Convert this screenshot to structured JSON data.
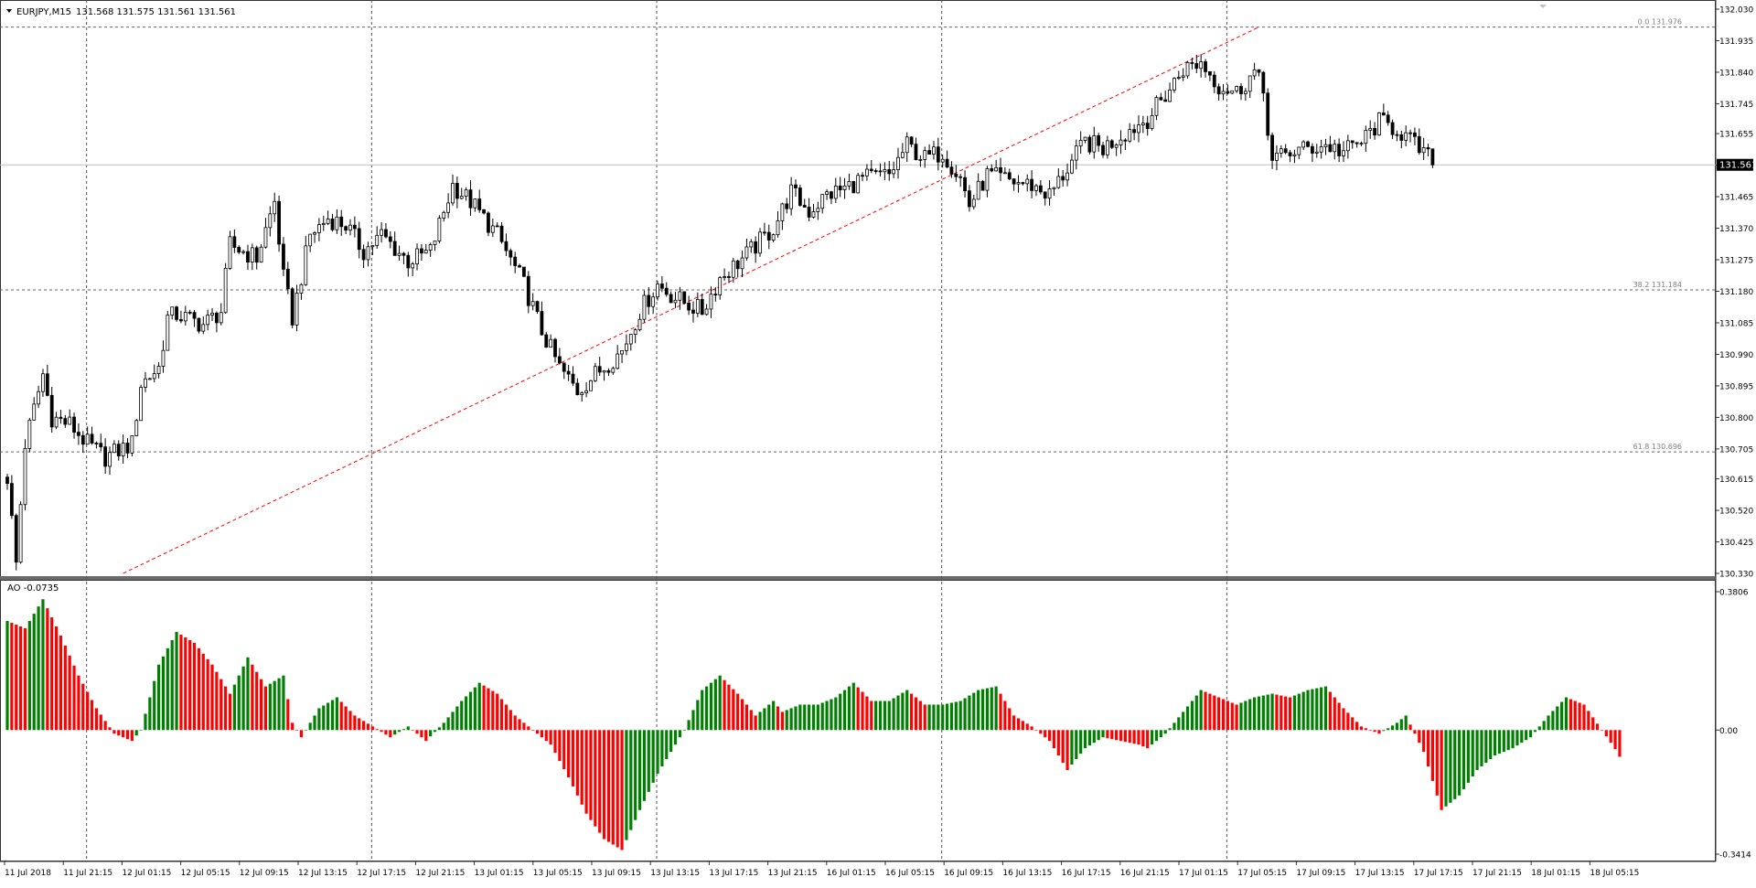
{
  "chart_data": [
    {
      "type": "candlestick",
      "title": "EURJPY,M15",
      "ohlc_header": "131.568 131.575 131.561 131.561",
      "timeframe": "M15",
      "symbol": "EURJPY",
      "ylim": [
        130.33,
        132.03
      ],
      "y_ticks": [
        "132.030",
        "131.935",
        "131.840",
        "131.745",
        "131.655",
        "131.560",
        "131.465",
        "131.370",
        "131.275",
        "131.180",
        "131.085",
        "130.990",
        "130.895",
        "130.800",
        "130.705",
        "130.615",
        "130.520",
        "130.425",
        "130.330"
      ],
      "current_price_label": "131.561",
      "current_price": 131.561,
      "grid": "dotted, vertical at day boundaries",
      "fibonacci_levels": [
        {
          "label": "0.0 131.976",
          "price": 131.976
        },
        {
          "label": "38.2 131.184",
          "price": 131.184
        },
        {
          "label": "61.8 130.696",
          "price": 130.696
        }
      ],
      "trendline": {
        "color": "#ff0000",
        "style": "dashed",
        "from": {
          "bar": 26,
          "price": 130.33
        },
        "to": {
          "bar": 281,
          "price": 131.976
        }
      },
      "price_anchors": [
        [
          0,
          130.62
        ],
        [
          2,
          130.36
        ],
        [
          4,
          130.72
        ],
        [
          8,
          130.93
        ],
        [
          10,
          130.8
        ],
        [
          14,
          130.78
        ],
        [
          18,
          130.72
        ],
        [
          22,
          130.68
        ],
        [
          28,
          130.72
        ],
        [
          30,
          130.9
        ],
        [
          34,
          130.95
        ],
        [
          36,
          131.1
        ],
        [
          38,
          131.11
        ],
        [
          44,
          131.08
        ],
        [
          48,
          131.12
        ],
        [
          50,
          131.32
        ],
        [
          56,
          131.28
        ],
        [
          60,
          131.45
        ],
        [
          62,
          131.22
        ],
        [
          64,
          131.1
        ],
        [
          68,
          131.35
        ],
        [
          72,
          131.4
        ],
        [
          76,
          131.38
        ],
        [
          80,
          131.3
        ],
        [
          84,
          131.35
        ],
        [
          90,
          131.27
        ],
        [
          95,
          131.3
        ],
        [
          100,
          131.5
        ],
        [
          104,
          131.45
        ],
        [
          110,
          131.35
        ],
        [
          116,
          131.2
        ],
        [
          120,
          131.06
        ],
        [
          124,
          130.95
        ],
        [
          128,
          130.88
        ],
        [
          132,
          130.93
        ],
        [
          138,
          131.0
        ],
        [
          142,
          131.12
        ],
        [
          146,
          131.2
        ],
        [
          150,
          131.16
        ],
        [
          156,
          131.12
        ],
        [
          160,
          131.22
        ],
        [
          166,
          131.29
        ],
        [
          172,
          131.37
        ],
        [
          176,
          131.48
        ],
        [
          180,
          131.42
        ],
        [
          184,
          131.47
        ],
        [
          188,
          131.49
        ],
        [
          192,
          131.52
        ],
        [
          198,
          131.53
        ],
        [
          202,
          131.62
        ],
        [
          206,
          131.58
        ],
        [
          210,
          131.6
        ],
        [
          214,
          131.52
        ],
        [
          216,
          131.44
        ],
        [
          220,
          131.53
        ],
        [
          226,
          131.51
        ],
        [
          230,
          131.5
        ],
        [
          234,
          131.47
        ],
        [
          238,
          131.55
        ],
        [
          242,
          131.63
        ],
        [
          246,
          131.61
        ],
        [
          250,
          131.65
        ],
        [
          256,
          131.7
        ],
        [
          260,
          131.77
        ],
        [
          264,
          131.85
        ],
        [
          268,
          131.87
        ],
        [
          272,
          131.8
        ],
        [
          276,
          131.78
        ],
        [
          280,
          131.84
        ],
        [
          282,
          131.78
        ],
        [
          284,
          131.57
        ],
        [
          288,
          131.6
        ],
        [
          292,
          131.61
        ],
        [
          296,
          131.62
        ],
        [
          300,
          131.6
        ],
        [
          304,
          131.63
        ],
        [
          308,
          131.69
        ],
        [
          312,
          131.67
        ],
        [
          316,
          131.62
        ],
        [
          320,
          131.57
        ]
      ]
    },
    {
      "type": "bar",
      "title": "AO -0.0735",
      "indicator": "Awesome Oscillator",
      "ylim": [
        -0.3414,
        0.3806
      ],
      "y_ticks": [
        "0.3806",
        "0.00",
        "-0.3414"
      ],
      "current_value": -0.0735,
      "colors": {
        "up": "#008000",
        "down": "#ff0000"
      },
      "value_anchors": [
        [
          0,
          0.3
        ],
        [
          4,
          0.28
        ],
        [
          8,
          0.36
        ],
        [
          12,
          0.26
        ],
        [
          16,
          0.15
        ],
        [
          20,
          0.06
        ],
        [
          24,
          -0.01
        ],
        [
          28,
          -0.03
        ],
        [
          30,
          0.0
        ],
        [
          34,
          0.18
        ],
        [
          38,
          0.27
        ],
        [
          42,
          0.24
        ],
        [
          46,
          0.18
        ],
        [
          50,
          0.1
        ],
        [
          54,
          0.2
        ],
        [
          58,
          0.12
        ],
        [
          62,
          0.15
        ],
        [
          64,
          0.02
        ],
        [
          66,
          -0.02
        ],
        [
          70,
          0.06
        ],
        [
          74,
          0.09
        ],
        [
          78,
          0.04
        ],
        [
          82,
          0.01
        ],
        [
          86,
          -0.02
        ],
        [
          90,
          0.01
        ],
        [
          94,
          -0.03
        ],
        [
          98,
          0.02
        ],
        [
          102,
          0.08
        ],
        [
          106,
          0.13
        ],
        [
          110,
          0.1
        ],
        [
          114,
          0.04
        ],
        [
          118,
          0.0
        ],
        [
          122,
          -0.04
        ],
        [
          126,
          -0.13
        ],
        [
          130,
          -0.23
        ],
        [
          134,
          -0.3
        ],
        [
          138,
          -0.33
        ],
        [
          142,
          -0.22
        ],
        [
          146,
          -0.12
        ],
        [
          150,
          -0.04
        ],
        [
          152,
          0.0
        ],
        [
          156,
          0.11
        ],
        [
          160,
          0.15
        ],
        [
          164,
          0.1
        ],
        [
          168,
          0.04
        ],
        [
          172,
          0.08
        ],
        [
          174,
          0.05
        ],
        [
          178,
          0.07
        ],
        [
          182,
          0.07
        ],
        [
          186,
          0.09
        ],
        [
          190,
          0.13
        ],
        [
          194,
          0.08
        ],
        [
          198,
          0.08
        ],
        [
          202,
          0.11
        ],
        [
          206,
          0.07
        ],
        [
          210,
          0.07
        ],
        [
          214,
          0.08
        ],
        [
          218,
          0.11
        ],
        [
          222,
          0.12
        ],
        [
          226,
          0.04
        ],
        [
          230,
          0.01
        ],
        [
          234,
          -0.03
        ],
        [
          236,
          -0.07
        ],
        [
          238,
          -0.11
        ],
        [
          242,
          -0.05
        ],
        [
          246,
          -0.02
        ],
        [
          250,
          -0.03
        ],
        [
          254,
          -0.04
        ],
        [
          256,
          -0.05
        ],
        [
          260,
          -0.01
        ],
        [
          264,
          0.05
        ],
        [
          268,
          0.11
        ],
        [
          272,
          0.09
        ],
        [
          276,
          0.07
        ],
        [
          280,
          0.09
        ],
        [
          284,
          0.1
        ],
        [
          288,
          0.09
        ],
        [
          292,
          0.11
        ],
        [
          296,
          0.12
        ],
        [
          300,
          0.06
        ],
        [
          304,
          0.01
        ],
        [
          308,
          -0.01
        ],
        [
          312,
          0.02
        ],
        [
          314,
          0.04
        ],
        [
          318,
          -0.06
        ],
        [
          322,
          -0.22
        ],
        [
          326,
          -0.18
        ],
        [
          330,
          -0.11
        ],
        [
          334,
          -0.07
        ],
        [
          338,
          -0.05
        ],
        [
          342,
          -0.02
        ],
        [
          346,
          0.04
        ],
        [
          350,
          0.09
        ],
        [
          354,
          0.07
        ],
        [
          358,
          0.0
        ],
        [
          362,
          -0.07
        ]
      ]
    }
  ],
  "x_axis": {
    "labels": [
      "11 Jul 2018",
      "11 Jul 21:15",
      "12 Jul 01:15",
      "12 Jul 05:15",
      "12 Jul 09:15",
      "12 Jul 13:15",
      "12 Jul 17:15",
      "12 Jul 21:15",
      "13 Jul 01:15",
      "13 Jul 05:15",
      "13 Jul 09:15",
      "13 Jul 13:15",
      "13 Jul 17:15",
      "13 Jul 21:15",
      "16 Jul 01:15",
      "16 Jul 05:15",
      "16 Jul 09:15",
      "16 Jul 13:15",
      "16 Jul 17:15",
      "16 Jul 21:15",
      "17 Jul 01:15",
      "17 Jul 05:15",
      "17 Jul 09:15",
      "17 Jul 13:15",
      "17 Jul 17:15",
      "17 Jul 21:15",
      "18 Jul 01:15",
      "18 Jul 05:15"
    ]
  },
  "colors": {
    "background": "#ffffff",
    "grid": "#555555",
    "candle_up": "#ffffff",
    "candle_down": "#000000",
    "candle_outline": "#000000",
    "price_label_bg": "#000000",
    "fib_text": "#808080"
  }
}
